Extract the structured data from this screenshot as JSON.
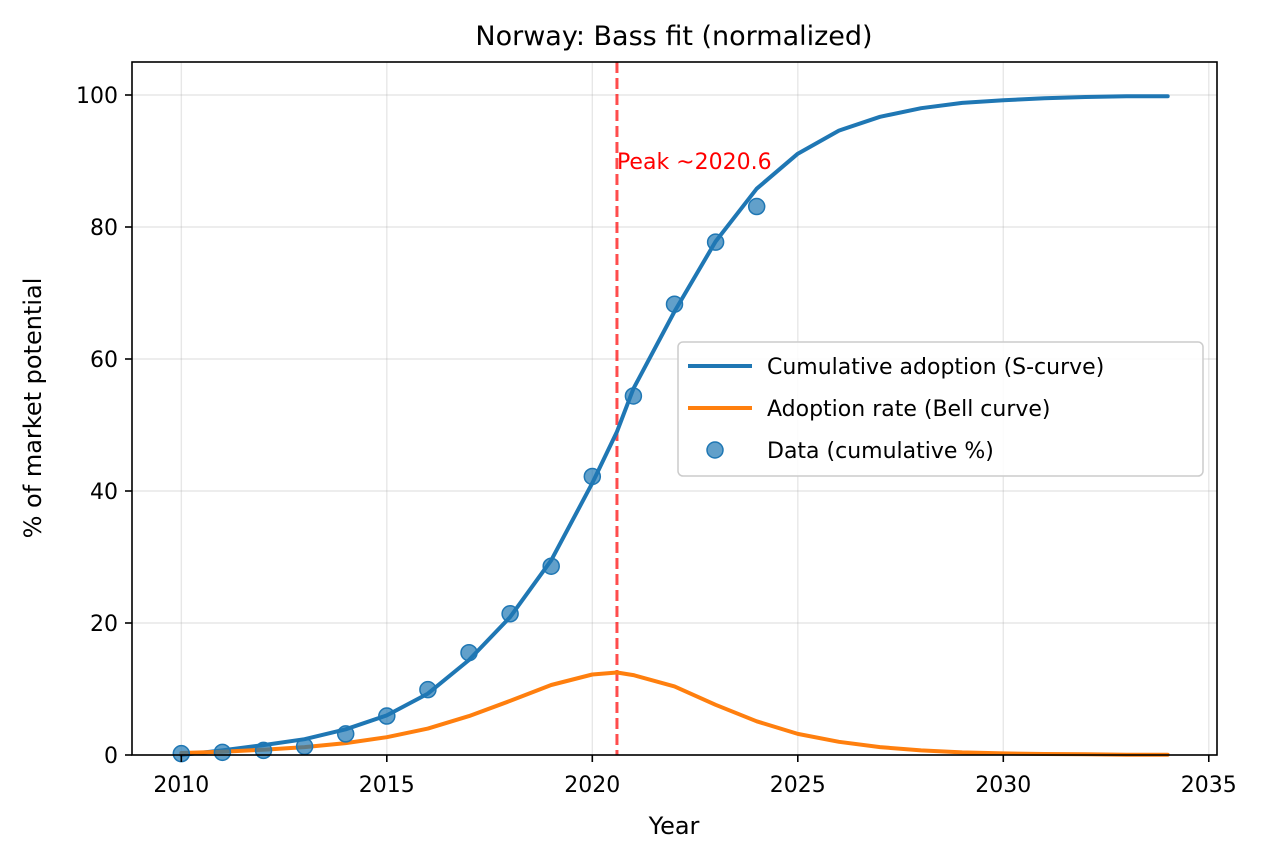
{
  "chart_data": {
    "type": "line",
    "title": "Norway: Bass fit (normalized)",
    "xlabel": "Year",
    "ylabel": "% of market potential",
    "xlim": [
      2008.8,
      2035.2
    ],
    "ylim": [
      0,
      105
    ],
    "xticks": [
      2010,
      2015,
      2020,
      2025,
      2030,
      2035
    ],
    "yticks": [
      0,
      20,
      40,
      60,
      80,
      100
    ],
    "grid": true,
    "legend_position": "center-right",
    "series": [
      {
        "name": "Cumulative adoption (S-curve)",
        "kind": "line",
        "color": "#1f77b4",
        "x": [
          2010,
          2011,
          2012,
          2013,
          2014,
          2015,
          2016,
          2017,
          2018,
          2019,
          2020,
          2020.6,
          2021,
          2022,
          2023,
          2024,
          2025,
          2026,
          2027,
          2028,
          2029,
          2030,
          2031,
          2032,
          2033,
          2034
        ],
        "y": [
          0.0,
          0.7,
          1.5,
          2.4,
          3.9,
          6.0,
          9.3,
          14.4,
          20.9,
          29.5,
          41.2,
          49.0,
          55.5,
          67.2,
          77.8,
          85.8,
          91.1,
          94.6,
          96.7,
          98.0,
          98.8,
          99.2,
          99.5,
          99.7,
          99.8,
          99.8
        ]
      },
      {
        "name": "Adoption rate (Bell curve)",
        "kind": "line",
        "color": "#ff7f0e",
        "x": [
          2010,
          2011,
          2012,
          2013,
          2014,
          2015,
          2016,
          2017,
          2018,
          2019,
          2020,
          2020.6,
          2021,
          2022,
          2023,
          2024,
          2025,
          2026,
          2027,
          2028,
          2029,
          2030,
          2031,
          2032,
          2033,
          2034
        ],
        "y": [
          0.3,
          0.5,
          0.8,
          1.2,
          1.8,
          2.7,
          4.0,
          5.9,
          8.2,
          10.6,
          12.2,
          12.5,
          12.1,
          10.4,
          7.6,
          5.1,
          3.2,
          2.0,
          1.2,
          0.7,
          0.4,
          0.25,
          0.15,
          0.1,
          0.05,
          0.03
        ]
      },
      {
        "name": "Data (cumulative %)",
        "kind": "scatter",
        "color": "#1f77b4",
        "x": [
          2010,
          2011,
          2012,
          2013,
          2014,
          2015,
          2016,
          2017,
          2018,
          2019,
          2020,
          2021,
          2022,
          2023,
          2024
        ],
        "y": [
          0.2,
          0.4,
          0.7,
          1.3,
          3.2,
          5.9,
          9.9,
          15.5,
          21.4,
          28.6,
          42.2,
          54.4,
          68.3,
          77.7,
          83.1
        ]
      }
    ],
    "annotations": [
      {
        "kind": "vline",
        "x": 2020.6,
        "color": "#ff0000",
        "style": "dashed"
      },
      {
        "kind": "text",
        "text": "Peak ~2020.6",
        "x": 2020.6,
        "y": 90,
        "color": "#ff0000"
      }
    ]
  }
}
